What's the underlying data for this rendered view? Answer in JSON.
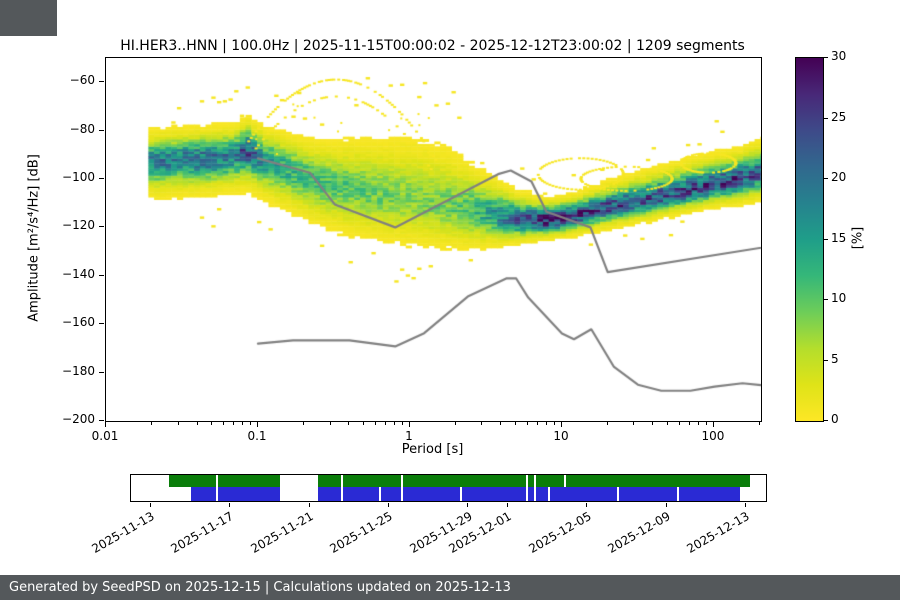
{
  "page": {
    "background": "#ffffff",
    "corner_block_color": "#54585b",
    "footer": {
      "text": "Generated by SeedPSD on 2025-12-15 | Calculations updated on 2025-12-13",
      "background": "#54585b",
      "text_color": "#ffffff"
    }
  },
  "chart_data": {
    "type": "heatmap",
    "title": "HI.HER3..HNN | 100.0Hz | 2025-11-15T00:00:02 - 2025-12-12T23:00:02 | 1209 segments",
    "xlabel": "Period [s]",
    "ylabel": "Amplitude [m²/s⁴/Hz] [dB]",
    "x_scale": "log",
    "xlim": [
      0.01,
      204
    ],
    "ylim": [
      -200,
      -50
    ],
    "x_ticks": [
      0.01,
      0.1,
      1,
      10,
      100
    ],
    "x_tick_labels": [
      "0.01",
      "0.1",
      "1",
      "10",
      "100"
    ],
    "y_ticks": [
      -60,
      -80,
      -100,
      -120,
      -140,
      -160,
      -180,
      -200
    ],
    "y_tick_labels": [
      "−60",
      "−80",
      "−100",
      "−120",
      "−140",
      "−160",
      "−180",
      "−200"
    ],
    "grid": false,
    "legend": "none",
    "colorbar": {
      "label": "[%]",
      "min": 0,
      "max": 30,
      "ticks": [
        0,
        5,
        10,
        15,
        20,
        25,
        30
      ],
      "tick_labels": [
        "0",
        "5",
        "10",
        "15",
        "20",
        "25",
        "30"
      ],
      "colormap": "viridis_r",
      "viridis_hex": [
        "#440154",
        "#482878",
        "#3e4a89",
        "#31688e",
        "#26828e",
        "#1f9e89",
        "#35b779",
        "#6dcd59",
        "#b4de2c",
        "#dfe318",
        "#fde725"
      ]
    },
    "ppsd_distribution": {
      "units": "PPSD probability columns: period [s], mode amplitude [dB], sigma up/down [dB], peak probability [%]",
      "periods_per_octave": 8,
      "min_period": 0.019,
      "columns": [
        {
          "p": 0.02,
          "mode": -92.5,
          "su": 5.0,
          "sd": 6.0,
          "peak": 18
        },
        {
          "p": 0.032,
          "mode": -91.5,
          "su": 5.0,
          "sd": 6.0,
          "peak": 19
        },
        {
          "p": 0.05,
          "mode": -91.0,
          "su": 5.0,
          "sd": 6.0,
          "peak": 20
        },
        {
          "p": 0.07,
          "mode": -90.0,
          "su": 5.0,
          "sd": 6.0,
          "peak": 18
        },
        {
          "p": 0.085,
          "mode": -87.5,
          "su": 5.0,
          "sd": 6.5,
          "peak": 23
        },
        {
          "p": 0.11,
          "mode": -92.0,
          "su": 5.5,
          "sd": 6.5,
          "peak": 16
        },
        {
          "p": 0.16,
          "mode": -96.0,
          "su": 6.0,
          "sd": 7.0,
          "peak": 13
        },
        {
          "p": 0.25,
          "mode": -101.0,
          "su": 7.0,
          "sd": 7.5,
          "peak": 11
        },
        {
          "p": 0.4,
          "mode": -104.0,
          "su": 8.5,
          "sd": 8.0,
          "peak": 10
        },
        {
          "p": 0.7,
          "mode": -107.0,
          "su": 10.0,
          "sd": 8.0,
          "peak": 9
        },
        {
          "p": 1.0,
          "mode": -108.5,
          "su": 11.0,
          "sd": 8.0,
          "peak": 8
        },
        {
          "p": 1.8,
          "mode": -111.0,
          "su": 10.0,
          "sd": 7.5,
          "peak": 9
        },
        {
          "p": 3.0,
          "mode": -114.0,
          "su": 7.0,
          "sd": 6.0,
          "peak": 13
        },
        {
          "p": 5.0,
          "mode": -116.5,
          "su": 4.5,
          "sd": 4.0,
          "peak": 22
        },
        {
          "p": 8.0,
          "mode": -117.0,
          "su": 3.5,
          "sd": 3.0,
          "peak": 28
        },
        {
          "p": 12.0,
          "mode": -115.5,
          "su": 3.5,
          "sd": 3.0,
          "peak": 27
        },
        {
          "p": 20.0,
          "mode": -111.5,
          "su": 4.0,
          "sd": 3.5,
          "peak": 24
        },
        {
          "p": 35.0,
          "mode": -108.5,
          "su": 4.5,
          "sd": 3.5,
          "peak": 23
        },
        {
          "p": 60.0,
          "mode": -105.5,
          "su": 5.0,
          "sd": 3.5,
          "peak": 23
        },
        {
          "p": 100.0,
          "mode": -102.5,
          "su": 5.0,
          "sd": 3.5,
          "peak": 25
        },
        {
          "p": 150.0,
          "mode": -100.0,
          "su": 5.0,
          "sd": 4.0,
          "peak": 24
        },
        {
          "p": 204.0,
          "mode": -97.5,
          "su": 5.5,
          "sd": 4.5,
          "peak": 21
        }
      ]
    },
    "noise_models": {
      "color": "#808080",
      "nhnm": [
        [
          0.1,
          -91.5
        ],
        [
          0.22,
          -97.4
        ],
        [
          0.32,
          -110.5
        ],
        [
          0.8,
          -120.0
        ],
        [
          3.8,
          -98.0
        ],
        [
          4.6,
          -96.5
        ],
        [
          6.3,
          -101.0
        ],
        [
          7.9,
          -113.5
        ],
        [
          15.4,
          -120.0
        ],
        [
          20.0,
          -138.5
        ],
        [
          354.8,
          -126.0
        ]
      ],
      "nlnm": [
        [
          0.1,
          -168.0
        ],
        [
          0.17,
          -166.7
        ],
        [
          0.4,
          -166.7
        ],
        [
          0.8,
          -169.2
        ],
        [
          1.24,
          -163.7
        ],
        [
          2.4,
          -148.6
        ],
        [
          4.3,
          -141.1
        ],
        [
          5.0,
          -141.1
        ],
        [
          6.0,
          -149.0
        ],
        [
          10.0,
          -163.8
        ],
        [
          12.0,
          -166.2
        ],
        [
          15.6,
          -162.1
        ],
        [
          21.9,
          -177.5
        ],
        [
          31.6,
          -185.0
        ],
        [
          45.0,
          -187.5
        ],
        [
          70.0,
          -187.5
        ],
        [
          101.0,
          -185.8
        ],
        [
          154.0,
          -184.4
        ],
        [
          328.0,
          -186.4
        ]
      ]
    },
    "transients": {
      "dome": {
        "apex_period": 0.32,
        "apex_db": -58.5,
        "curvature": 77,
        "p_start": 0.085,
        "p_end": 1.5,
        "second_arc_db_offset": -7
      },
      "ellipses": [
        {
          "p": 13,
          "db": -97.5,
          "r_decades": 0.28,
          "r_db": 6.5
        },
        {
          "p": 26,
          "db": -99.5,
          "r_decades": 0.3,
          "r_db": 5.0
        },
        {
          "p": 90,
          "db": -93.0,
          "r_decades": 0.18,
          "r_db": 4.0
        }
      ]
    }
  },
  "timeline": {
    "start_date": "2025-11-12",
    "end_date": "2025-12-14",
    "total_days": 32,
    "tick_days": [
      1,
      5,
      9,
      13,
      17,
      19,
      23,
      27,
      31
    ],
    "tick_labels": [
      "2025-11-13",
      "2025-11-17",
      "2025-11-21",
      "2025-11-25",
      "2025-11-29",
      "2025-12-01",
      "2025-12-05",
      "2025-12-09",
      "2025-12-13"
    ],
    "rows": [
      {
        "name": "green",
        "color": "#0a7d0a",
        "segments_days": [
          [
            1.9,
            7.5
          ],
          [
            9.4,
            31.2
          ]
        ],
        "gap_lines_days": [
          4.3,
          10.6,
          13.6,
          19.9,
          20.3,
          21.8
        ]
      },
      {
        "name": "blue",
        "color": "#2a2ad4",
        "segments_days": [
          [
            3.0,
            7.5
          ],
          [
            9.4,
            30.7
          ]
        ],
        "gap_lines_days": [
          4.3,
          10.6,
          12.5,
          13.6,
          16.6,
          19.9,
          20.3,
          21.0,
          24.5,
          27.5
        ]
      }
    ]
  }
}
